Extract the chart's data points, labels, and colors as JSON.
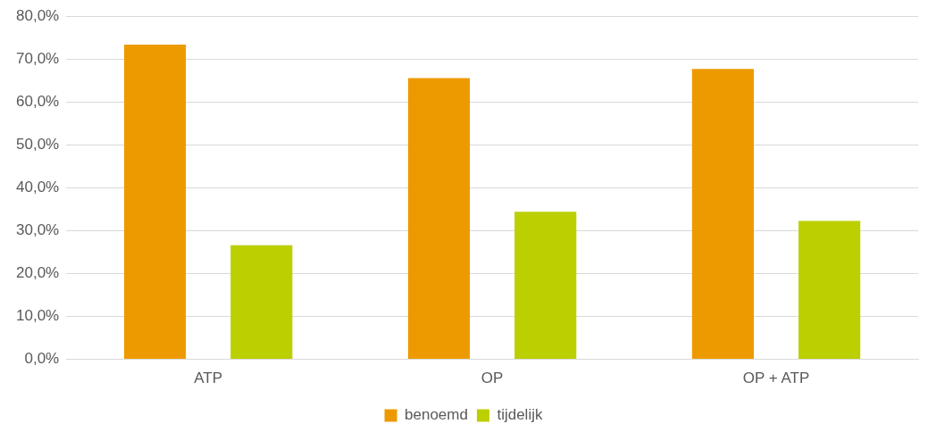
{
  "chart_data": {
    "type": "bar",
    "categories": [
      "ATP",
      "OP",
      "OP + ATP"
    ],
    "series": [
      {
        "name": "benoemd",
        "color": "#ed9a00",
        "values": [
          73.4,
          65.6,
          67.7
        ]
      },
      {
        "name": "tijdelijk",
        "color": "#bccf00",
        "values": [
          26.6,
          34.4,
          32.3
        ]
      }
    ],
    "ylim": [
      0,
      80
    ],
    "yticks": [
      {
        "value": 0,
        "label": "0,0%"
      },
      {
        "value": 10,
        "label": "10,0%"
      },
      {
        "value": 20,
        "label": "20,0%"
      },
      {
        "value": 30,
        "label": "30,0%"
      },
      {
        "value": 40,
        "label": "40,0%"
      },
      {
        "value": 50,
        "label": "50,0%"
      },
      {
        "value": 60,
        "label": "60,0%"
      },
      {
        "value": 70,
        "label": "70,0%"
      },
      {
        "value": 80,
        "label": "80,0%"
      }
    ],
    "grid": "y",
    "legend": "bottom"
  }
}
